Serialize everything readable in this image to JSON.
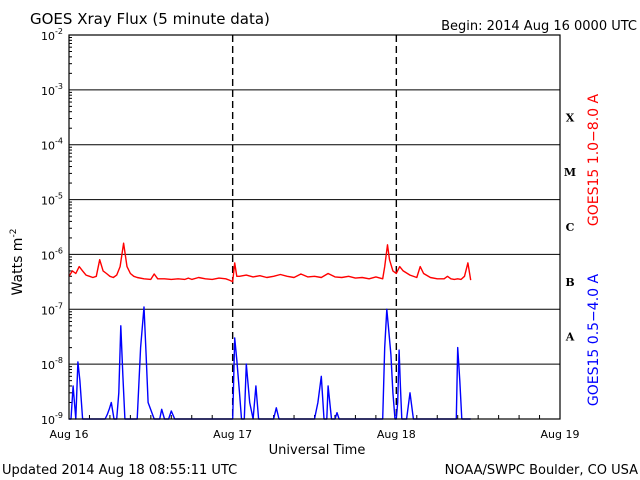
{
  "header": {
    "title": "GOES Xray Flux (5 minute data)",
    "begin": "Begin:  2014 Aug 16 0000 UTC"
  },
  "footer": {
    "updated": "Updated 2014 Aug 18 08:55:11 UTC",
    "credit": "NOAA/SWPC Boulder, CO USA"
  },
  "chart_data": {
    "type": "line",
    "title": "GOES Xray Flux (5 minute data)",
    "xlabel": "Universal Time",
    "ylabel": "Watts m",
    "ylabel_sup": "-2",
    "y_scale": "log",
    "ylim": [
      1e-09,
      0.01
    ],
    "y_ticks": [
      {
        "exp": -2,
        "label_base": "10",
        "label_exp": "-2"
      },
      {
        "exp": -3,
        "label_base": "10",
        "label_exp": "-3"
      },
      {
        "exp": -4,
        "label_base": "10",
        "label_exp": "-4"
      },
      {
        "exp": -5,
        "label_base": "10",
        "label_exp": "-5"
      },
      {
        "exp": -6,
        "label_base": "10",
        "label_exp": "-6"
      },
      {
        "exp": -7,
        "label_base": "10",
        "label_exp": "-7"
      },
      {
        "exp": -8,
        "label_base": "10",
        "label_exp": "-8"
      },
      {
        "exp": -9,
        "label_base": "10",
        "label_exp": "-9"
      }
    ],
    "x_unit": "hours since 2014 Aug 16 0000 UTC",
    "xlim": [
      0,
      72
    ],
    "x_ticks": [
      {
        "value": 0,
        "label": "Aug 16"
      },
      {
        "value": 24,
        "label": "Aug 17"
      },
      {
        "value": 48,
        "label": "Aug 18"
      },
      {
        "value": 72,
        "label": "Aug 19"
      }
    ],
    "grid": true,
    "flare_classes": [
      {
        "label": "X",
        "exp": -4
      },
      {
        "label": "M",
        "exp": -5
      },
      {
        "label": "C",
        "exp": -6
      },
      {
        "label": "B",
        "exp": -7
      },
      {
        "label": "A",
        "exp": -8
      }
    ],
    "series": [
      {
        "name": "GOES15 1.0−8.0 A",
        "color": "#ff0000",
        "x": [
          0,
          0.5,
          1,
          1.5,
          2,
          2.5,
          3,
          3.5,
          4,
          4.5,
          5,
          5.5,
          6,
          6.5,
          7,
          7.5,
          8,
          8.5,
          9,
          9.5,
          10,
          11,
          12,
          12.5,
          13,
          14,
          15,
          16,
          17,
          17.5,
          18,
          19,
          20,
          21,
          22,
          23,
          23.5,
          24,
          24.3,
          24.6,
          25,
          26,
          27,
          28,
          29,
          30,
          31,
          32,
          33,
          34,
          35,
          36,
          37,
          38,
          39,
          40,
          41,
          42,
          43,
          44,
          45,
          46,
          46.3,
          46.7,
          47,
          47.5,
          48,
          48.5,
          49,
          50,
          51,
          51.5,
          52,
          53,
          54,
          55,
          55.5,
          56,
          56.5,
          57,
          57.5,
          58,
          58.5,
          58.9
        ],
        "values": [
          4e-07,
          5e-07,
          4.5e-07,
          6e-07,
          5e-07,
          4.2e-07,
          4e-07,
          3.8e-07,
          4e-07,
          8e-07,
          5e-07,
          4.5e-07,
          4e-07,
          3.8e-07,
          4.2e-07,
          6e-07,
          1.6e-06,
          6e-07,
          4.5e-07,
          4e-07,
          3.8e-07,
          3.6e-07,
          3.5e-07,
          4.4e-07,
          3.6e-07,
          3.6e-07,
          3.5e-07,
          3.6e-07,
          3.5e-07,
          3.7e-07,
          3.5e-07,
          3.8e-07,
          3.6e-07,
          3.5e-07,
          3.7e-07,
          3.6e-07,
          3.4e-07,
          3.2e-07,
          7e-07,
          4e-07,
          4e-07,
          4.2e-07,
          3.9e-07,
          4.1e-07,
          3.8e-07,
          4e-07,
          4.3e-07,
          4e-07,
          3.8e-07,
          4.4e-07,
          3.9e-07,
          4e-07,
          3.8e-07,
          4.5e-07,
          3.9e-07,
          3.8e-07,
          4e-07,
          3.7e-07,
          3.8e-07,
          3.6e-07,
          3.9e-07,
          3.6e-07,
          6e-07,
          1.5e-06,
          8e-07,
          5e-07,
          4.5e-07,
          6e-07,
          5e-07,
          4.2e-07,
          3.8e-07,
          6e-07,
          4.5e-07,
          3.8e-07,
          3.6e-07,
          3.6e-07,
          4e-07,
          3.6e-07,
          3.5e-07,
          3.6e-07,
          3.5e-07,
          4e-07,
          7e-07,
          3.4e-07
        ]
      },
      {
        "name": "GOES15 0.5−4.0 A",
        "color": "#0000ff",
        "x": [
          0,
          0.3,
          0.6,
          1.0,
          1.3,
          1.6,
          2.0,
          2.2,
          2.4,
          2.6,
          2.8,
          3.0,
          3.2,
          3.4,
          3.6,
          5.0,
          5.3,
          5.6,
          5.9,
          6.2,
          6.6,
          7.0,
          7.3,
          7.6,
          7.9,
          8.2,
          8.5,
          8.8,
          9.2,
          9.6,
          10.0,
          10.5,
          11.0,
          11.3,
          11.6,
          12.5,
          13.0,
          13.3,
          13.6,
          14.0,
          14.6,
          15.0,
          15.5,
          20.0,
          23.0,
          23.4,
          23.8,
          24.0,
          24.3,
          24.6,
          25.0,
          25.3,
          25.7,
          26.0,
          26.5,
          27.0,
          27.4,
          27.8,
          29.0,
          30.0,
          30.4,
          30.8,
          31.5,
          36.0,
          36.5,
          37.0,
          37.4,
          37.8,
          38.0,
          38.5,
          39.0,
          39.3,
          39.6,
          40.0,
          42.0,
          44.0,
          45.5,
          46.0,
          46.3,
          46.6,
          46.9,
          47.2,
          47.5,
          47.8,
          48.0,
          48.2,
          48.4,
          48.6,
          48.8,
          49.0,
          49.5,
          50.0,
          50.5,
          51.0,
          52.0,
          53.0,
          55.0,
          56.0,
          56.5,
          56.8,
          57.0,
          57.3,
          57.6,
          58.0,
          58.5,
          58.9
        ],
        "values": [
          1e-09,
          1e-09,
          4e-09,
          1e-09,
          1.1e-08,
          5e-09,
          1e-09,
          1e-09,
          1e-09,
          1e-09,
          1e-09,
          1e-09,
          1e-09,
          1e-09,
          1e-09,
          1e-09,
          1e-09,
          1.2e-09,
          1.5e-09,
          2e-09,
          1e-09,
          1e-09,
          3e-09,
          5e-08,
          6e-09,
          1e-09,
          1e-09,
          1e-09,
          1e-09,
          1e-09,
          1e-09,
          2e-08,
          1.1e-07,
          1.5e-08,
          2e-09,
          1e-09,
          1e-09,
          1e-09,
          1.5e-09,
          1e-09,
          1e-09,
          1.4e-09,
          1e-09,
          1e-09,
          1e-09,
          1e-09,
          1e-09,
          1e-09,
          3e-08,
          1.2e-08,
          3e-09,
          1e-09,
          1e-09,
          1e-08,
          2e-09,
          1e-09,
          4e-09,
          1e-09,
          1e-09,
          1e-09,
          1.6e-09,
          1e-09,
          1e-09,
          1e-09,
          2e-09,
          6e-09,
          1e-09,
          1e-09,
          4e-09,
          1e-09,
          1e-09,
          1.3e-09,
          1e-09,
          1e-09,
          1e-09,
          1e-09,
          1e-09,
          1e-09,
          2e-08,
          1e-07,
          4e-08,
          1.5e-08,
          3e-09,
          1e-09,
          1e-09,
          2e-09,
          1.8e-08,
          4e-09,
          1e-09,
          1e-09,
          1e-09,
          3e-09,
          1e-09,
          1e-09,
          1e-09,
          1e-09,
          1e-09,
          1e-09,
          1e-09,
          1e-09,
          2e-08,
          5e-09,
          1e-09,
          1e-09,
          1e-09,
          1e-09
        ]
      }
    ]
  }
}
